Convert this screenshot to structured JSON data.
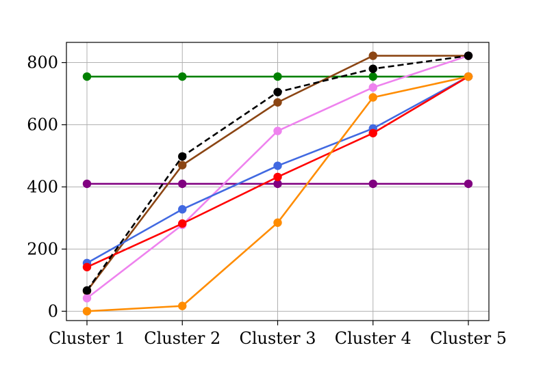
{
  "chart_data": {
    "type": "line",
    "title": "",
    "xlabel": "",
    "ylabel": "",
    "categories": [
      "Cluster 1",
      "Cluster 2",
      "Cluster 3",
      "Cluster 4",
      "Cluster 5"
    ],
    "y_ticks": [
      "0",
      "200",
      "400",
      "600",
      "800"
    ],
    "ylim": [
      -30,
      865
    ],
    "grid": true,
    "legend": "none",
    "series": [
      {
        "color": "#008000",
        "style": "solid",
        "values": [
          755,
          755,
          755,
          755,
          755
        ]
      },
      {
        "color": "#800080",
        "style": "solid",
        "values": [
          410,
          410,
          410,
          410,
          410
        ]
      },
      {
        "color": "#8B4513",
        "style": "solid",
        "values": [
          65,
          470,
          672,
          822,
          822
        ]
      },
      {
        "color": "#EE82EE",
        "style": "solid",
        "values": [
          42,
          278,
          580,
          720,
          822
        ]
      },
      {
        "color": "#4169E1",
        "style": "solid",
        "values": [
          155,
          328,
          468,
          588,
          755
        ]
      },
      {
        "color": "#FF0000",
        "style": "solid",
        "values": [
          142,
          282,
          432,
          573,
          755
        ]
      },
      {
        "color": "#FF8C00",
        "style": "solid",
        "values": [
          0,
          17,
          285,
          688,
          755
        ]
      },
      {
        "color": "#000000",
        "style": "dashed",
        "values": [
          67,
          498,
          705,
          780,
          822
        ]
      }
    ]
  }
}
